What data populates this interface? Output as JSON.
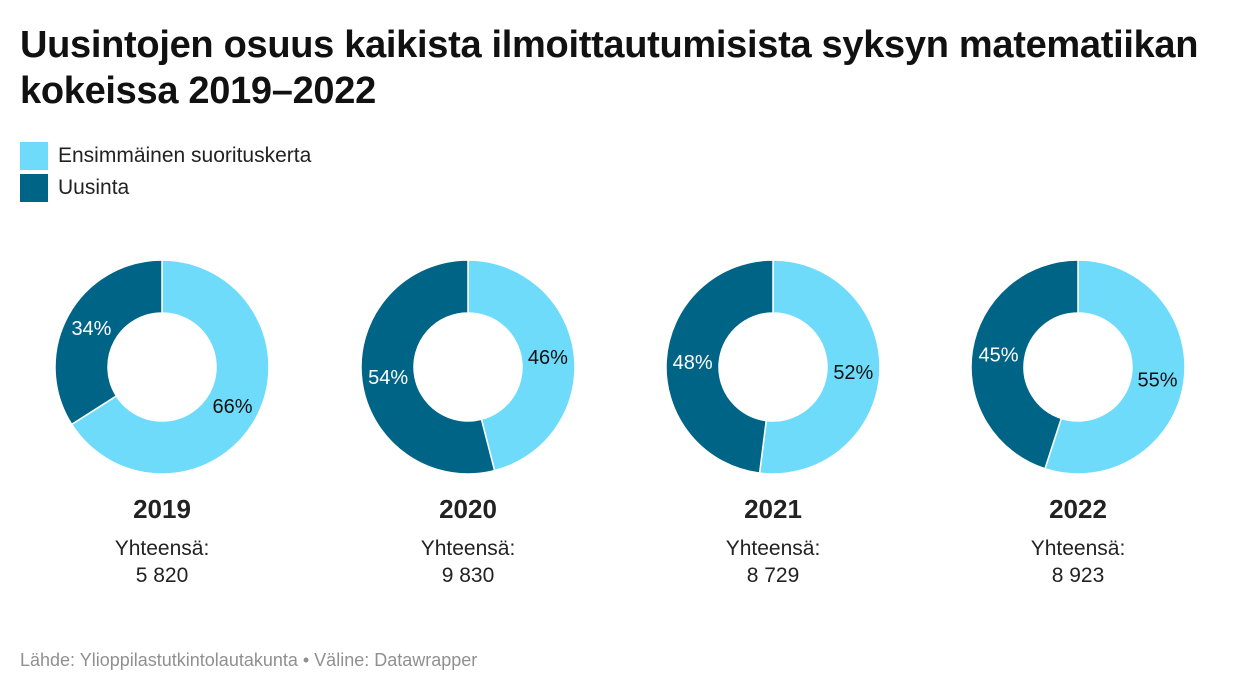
{
  "title": "Uusintojen osuus kaikista ilmoittautumisista syksyn matematiikan kokeissa 2019–2022",
  "legend": [
    {
      "label": "Ensimmäinen suorituskerta",
      "color": "#6fdbfb"
    },
    {
      "label": "Uusinta",
      "color": "#006487"
    }
  ],
  "total_label": "Yhteensä:",
  "chart_data": {
    "type": "pie",
    "variant": "donut",
    "series_names": [
      "Ensimmäinen suorituskerta",
      "Uusinta"
    ],
    "charts": [
      {
        "year": "2019",
        "first_pct": 66,
        "retake_pct": 34,
        "first_label": "66%",
        "retake_label": "34%",
        "total": "5 820"
      },
      {
        "year": "2020",
        "first_pct": 46,
        "retake_pct": 54,
        "first_label": "46%",
        "retake_label": "54%",
        "total": "9 830"
      },
      {
        "year": "2021",
        "first_pct": 52,
        "retake_pct": 48,
        "first_label": "52%",
        "retake_label": "48%",
        "total": "8 729"
      },
      {
        "year": "2022",
        "first_pct": 55,
        "retake_pct": 45,
        "first_label": "55%",
        "retake_label": "45%",
        "total": "8 923"
      }
    ]
  },
  "source": "Lähde: Ylioppilastutkintolautakunta • Väline: Datawrapper"
}
